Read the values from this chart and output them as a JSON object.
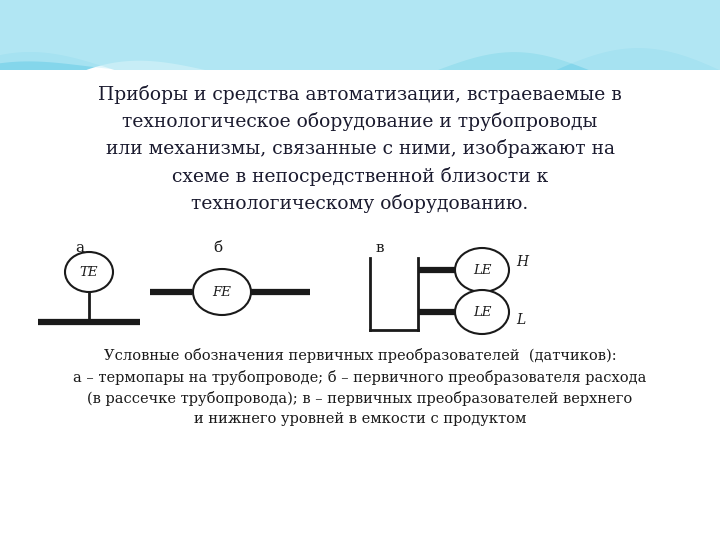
{
  "title_text": "Приборы и средства автоматизации, встраеваемые в\nтехнологическое оборудование и трубопроводы\nили механизмы, связанные с ними, изображают на\nсхеме в непосредственной близости к\nтехнологическому оборудованию.",
  "label_a": "а",
  "label_b": "б",
  "label_c": "в",
  "label_TE": "TE",
  "label_FE": "FE",
  "label_LE": "LE",
  "label_H": "H",
  "label_L": "L",
  "caption": "Условные обозначения первичных преобразователей  (датчиков):\nа – термопары на трубопроводе; б – первичного преобразователя расхода\n(в рассечке трубопровода); в – первичных преобразователей верхнего\nи нижнего уровней в емкости с продуктом",
  "line_color": "#1a1a1a",
  "text_color": "#1a1a2e",
  "wave1_color": "#6ecfe8",
  "wave2_color": "#a8e4f0",
  "wave3_color": "#c8eef8",
  "title_fontsize": 13.5,
  "caption_fontsize": 10.5
}
